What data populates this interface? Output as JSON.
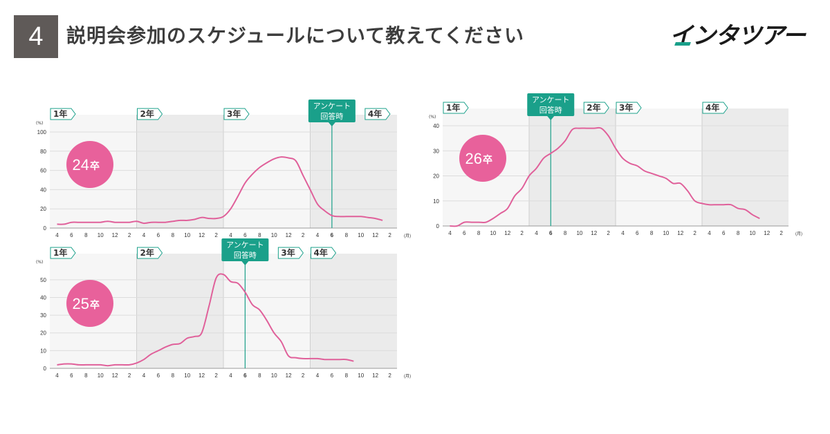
{
  "header": {
    "number": "4",
    "title": "説明会参加のスケジュールについて教えてください"
  },
  "logo": {
    "text": "インタツアー"
  },
  "colors": {
    "line": "#e0609a",
    "accent": "#1aa08a",
    "shade": "#efefef",
    "badge": "#e8619b",
    "header_box": "#5f5a58"
  },
  "chart_data": [
    {
      "type": "line",
      "name": "chart-24",
      "badge_number": "24",
      "badge_suffix": "卒",
      "y_label": "(%)",
      "x_unit": "(月)",
      "ylim": [
        0,
        100
      ],
      "yticks": [
        "0",
        "20",
        "40",
        "60",
        "80",
        "100"
      ],
      "x_ticks": [
        "4",
        "6",
        "8",
        "10",
        "12",
        "2",
        "4",
        "6",
        "8",
        "10",
        "12",
        "2",
        "4",
        "6",
        "8",
        "10",
        "12",
        "2",
        "4",
        "6",
        "8",
        "10",
        "12",
        "2"
      ],
      "highlight_tick_index": 19,
      "year_labels": [
        "1年",
        "2年",
        "3年",
        "4年"
      ],
      "year_starts": [
        0,
        12,
        24,
        36
      ],
      "shaded_years": [
        1,
        3
      ],
      "survey": {
        "label_line1": "アンケート",
        "label_line2": "回答時",
        "month_index": 38
      },
      "values": [
        4,
        4,
        6,
        6,
        6,
        6,
        6,
        7,
        6,
        6,
        6,
        7,
        5,
        6,
        6,
        6,
        7,
        8,
        8,
        9,
        11,
        10,
        10,
        12,
        20,
        33,
        47,
        56,
        63,
        68,
        72,
        74,
        73,
        70,
        55,
        40,
        25,
        18,
        13,
        12,
        12,
        12,
        12,
        11,
        10,
        8
      ]
    },
    {
      "type": "line",
      "name": "chart-25",
      "badge_number": "25",
      "badge_suffix": "卒",
      "y_label": "(%)",
      "x_unit": "(月)",
      "ylim": [
        0,
        55
      ],
      "yticks": [
        "0",
        "10",
        "20",
        "30",
        "40",
        "50"
      ],
      "x_ticks": [
        "4",
        "6",
        "8",
        "10",
        "12",
        "2",
        "4",
        "6",
        "8",
        "10",
        "12",
        "2",
        "4",
        "6",
        "8",
        "10",
        "12",
        "2",
        "4",
        "6",
        "8",
        "10",
        "12",
        "2"
      ],
      "highlight_tick_index": 13,
      "year_labels": [
        "1年",
        "2年",
        "3年",
        "4年"
      ],
      "year_starts": [
        0,
        12,
        24,
        36
      ],
      "shaded_years": [
        1,
        3
      ],
      "survey": {
        "label_line1": "アンケート",
        "label_line2": "回答時",
        "month_index": 26
      },
      "values": [
        2,
        2.5,
        2.5,
        2,
        2,
        2,
        2,
        1.5,
        2,
        2,
        2,
        3,
        5,
        8,
        10,
        12,
        13.5,
        14,
        17,
        18,
        20,
        35,
        51,
        53,
        49,
        48,
        43,
        36,
        33,
        27,
        20,
        15,
        7,
        6,
        5.5,
        5.5,
        5.5,
        5,
        5,
        5,
        5,
        4
      ]
    },
    {
      "type": "line",
      "name": "chart-26",
      "badge_number": "26",
      "badge_suffix": "卒",
      "y_label": "(%)",
      "x_unit": "(月)",
      "ylim": [
        0,
        40
      ],
      "yticks": [
        "0",
        "10",
        "20",
        "30",
        "40"
      ],
      "x_ticks": [
        "4",
        "6",
        "8",
        "10",
        "12",
        "2",
        "4",
        "6",
        "8",
        "10",
        "12",
        "2",
        "4",
        "6",
        "8",
        "10",
        "12",
        "2",
        "4",
        "6",
        "8",
        "10",
        "12",
        "2"
      ],
      "highlight_tick_index": 7,
      "year_labels": [
        "1年",
        "2年",
        "3年",
        "4年"
      ],
      "year_starts": [
        0,
        12,
        24,
        36
      ],
      "shaded_years": [
        1,
        3
      ],
      "survey": {
        "label_line1": "アンケート",
        "label_line2": "回答時",
        "month_index": 14
      },
      "values": [
        0,
        0,
        1.5,
        1.5,
        1.5,
        1.5,
        3,
        5,
        7,
        12,
        15,
        20,
        23,
        27,
        29,
        31,
        34,
        38.5,
        39,
        39,
        39,
        39,
        36,
        31,
        27,
        25,
        24,
        22,
        21,
        20,
        19,
        17,
        17,
        14,
        10,
        9,
        8.5,
        8.5,
        8.5,
        8.5,
        7,
        6.5,
        4.5,
        3
      ]
    }
  ]
}
